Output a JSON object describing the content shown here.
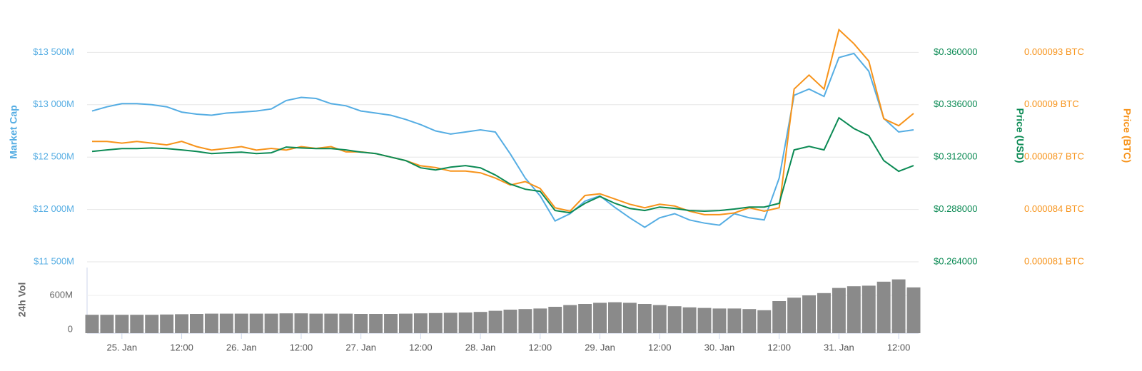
{
  "chart_data": [
    {
      "type": "line",
      "x": [
        -6,
        -3,
        0,
        3,
        6,
        9,
        12,
        15,
        18,
        21,
        24,
        27,
        30,
        33,
        36,
        39,
        42,
        45,
        48,
        51,
        54,
        57,
        60,
        63,
        66,
        69,
        72,
        75,
        78,
        81,
        84,
        87,
        90,
        93,
        96,
        99,
        102,
        105,
        108,
        111,
        114,
        117,
        120,
        123,
        126,
        129,
        132,
        135,
        138,
        141,
        144,
        147,
        150,
        153,
        156,
        159
      ],
      "xlim": [
        -7,
        160
      ],
      "y_label": "Market Cap",
      "y2_label": "Price (USD)",
      "y3_label": "Price (BTC)",
      "ylim": [
        11500,
        14000
      ],
      "yticks": [
        {
          "value": 11500,
          "label": "$11 500M"
        },
        {
          "value": 12000,
          "label": "$12 000M"
        },
        {
          "value": 12500,
          "label": "$12 500M"
        },
        {
          "value": 13000,
          "label": "$13 000M"
        },
        {
          "value": 13500,
          "label": "$13 500M"
        }
      ],
      "y2lim": [
        0.264,
        0.384
      ],
      "y2ticks": [
        {
          "value": 0.264,
          "label": "$0.264000"
        },
        {
          "value": 0.288,
          "label": "$0.288000"
        },
        {
          "value": 0.312,
          "label": "$0.312000"
        },
        {
          "value": 0.336,
          "label": "$0.336000"
        },
        {
          "value": 0.36,
          "label": "$0.360000"
        }
      ],
      "y3lim": [
        8.1e-05,
        9.6e-05
      ],
      "y3ticks": [
        {
          "value": 8.1e-05,
          "label": "0.000081 BTC"
        },
        {
          "value": 8.4e-05,
          "label": "0.000084 BTC"
        },
        {
          "value": 8.7e-05,
          "label": "0.000087 BTC"
        },
        {
          "value": 9e-05,
          "label": "0.00009 BTC"
        },
        {
          "value": 9.3e-05,
          "label": "0.000093 BTC"
        }
      ],
      "grid": true,
      "series": [
        {
          "name": "Market Cap",
          "color": "#55ade3",
          "axis": "y",
          "values": [
            12940,
            12980,
            13010,
            13010,
            13000,
            12980,
            12930,
            12910,
            12900,
            12920,
            12930,
            12940,
            12960,
            13040,
            13070,
            13060,
            13010,
            12990,
            12940,
            12920,
            12900,
            12860,
            12810,
            12750,
            12720,
            12740,
            12760,
            12740,
            12530,
            12300,
            12130,
            11890,
            11960,
            12080,
            12130,
            12020,
            11920,
            11830,
            11920,
            11960,
            11900,
            11870,
            11850,
            11960,
            11920,
            11900,
            12300,
            13090,
            13150,
            13080,
            13450,
            13490,
            13320,
            12870,
            12740,
            12760
          ]
        },
        {
          "name": "Price (BTC)",
          "color": "#f7931a",
          "axis": "y3",
          "values": [
            8.79e-05,
            8.79e-05,
            8.78e-05,
            8.79e-05,
            8.78e-05,
            8.77e-05,
            8.79e-05,
            8.76e-05,
            8.74e-05,
            8.75e-05,
            8.76e-05,
            8.74e-05,
            8.75e-05,
            8.74e-05,
            8.76e-05,
            8.75e-05,
            8.76e-05,
            8.73e-05,
            8.73e-05,
            8.72e-05,
            8.7e-05,
            8.68e-05,
            8.65e-05,
            8.64e-05,
            8.62e-05,
            8.62e-05,
            8.61e-05,
            8.58e-05,
            8.54e-05,
            8.56e-05,
            8.52e-05,
            8.41e-05,
            8.39e-05,
            8.48e-05,
            8.49e-05,
            8.46e-05,
            8.43e-05,
            8.41e-05,
            8.43e-05,
            8.42e-05,
            8.39e-05,
            8.37e-05,
            8.37e-05,
            8.38e-05,
            8.41e-05,
            8.39e-05,
            8.41e-05,
            9.09e-05,
            9.17e-05,
            9.09e-05,
            9.43e-05,
            9.35e-05,
            9.25e-05,
            8.92e-05,
            8.88e-05,
            8.95e-05
          ]
        },
        {
          "name": "Price (USD)",
          "color": "#0b8a54",
          "axis": "y2",
          "values": [
            0.3146,
            0.3153,
            0.3159,
            0.3159,
            0.3162,
            0.3159,
            0.3153,
            0.3146,
            0.3136,
            0.314,
            0.3143,
            0.3136,
            0.314,
            0.3166,
            0.3162,
            0.3159,
            0.3159,
            0.3153,
            0.3143,
            0.3136,
            0.312,
            0.3104,
            0.3071,
            0.3061,
            0.3074,
            0.3081,
            0.3071,
            0.3038,
            0.2996,
            0.2973,
            0.2963,
            0.2875,
            0.2865,
            0.2908,
            0.294,
            0.2908,
            0.2885,
            0.2875,
            0.2891,
            0.2885,
            0.2875,
            0.2872,
            0.2875,
            0.2882,
            0.2891,
            0.2891,
            0.2908,
            0.3153,
            0.3169,
            0.3153,
            0.33,
            0.3251,
            0.3218,
            0.3104,
            0.3055,
            0.3081
          ]
        }
      ]
    },
    {
      "type": "bar",
      "y_label": "24h Vol",
      "x": [
        -6,
        -3,
        0,
        3,
        6,
        9,
        12,
        15,
        18,
        21,
        24,
        27,
        30,
        33,
        36,
        39,
        42,
        45,
        48,
        51,
        54,
        57,
        60,
        63,
        66,
        69,
        72,
        75,
        78,
        81,
        84,
        87,
        90,
        93,
        96,
        99,
        102,
        105,
        108,
        111,
        114,
        117,
        120,
        123,
        126,
        129,
        132,
        135,
        138,
        141,
        144,
        147,
        150,
        153,
        156,
        159
      ],
      "xlim": [
        -7,
        160
      ],
      "xticks": [
        {
          "value": 0,
          "label": "25. Jan"
        },
        {
          "value": 12,
          "label": "12:00"
        },
        {
          "value": 24,
          "label": "26. Jan"
        },
        {
          "value": 36,
          "label": "12:00"
        },
        {
          "value": 48,
          "label": "27. Jan"
        },
        {
          "value": 60,
          "label": "12:00"
        },
        {
          "value": 72,
          "label": "28. Jan"
        },
        {
          "value": 84,
          "label": "12:00"
        },
        {
          "value": 96,
          "label": "29. Jan"
        },
        {
          "value": 108,
          "label": "12:00"
        },
        {
          "value": 120,
          "label": "30. Jan"
        },
        {
          "value": 132,
          "label": "12:00"
        },
        {
          "value": 144,
          "label": "31. Jan"
        },
        {
          "value": 156,
          "label": "12:00"
        }
      ],
      "ylim": [
        0,
        1050
      ],
      "yticks": [
        0,
        {
          "value": 600,
          "label": "600M"
        }
      ],
      "color": "#8a8a8a",
      "values": [
        260,
        260,
        260,
        260,
        260,
        265,
        270,
        275,
        280,
        280,
        280,
        280,
        280,
        285,
        285,
        280,
        280,
        280,
        275,
        275,
        275,
        280,
        285,
        290,
        295,
        300,
        310,
        330,
        350,
        360,
        370,
        400,
        430,
        450,
        470,
        480,
        470,
        450,
        430,
        410,
        390,
        380,
        370,
        370,
        360,
        340,
        500,
        560,
        600,
        640,
        730,
        760,
        770,
        840,
        880,
        740
      ]
    }
  ]
}
